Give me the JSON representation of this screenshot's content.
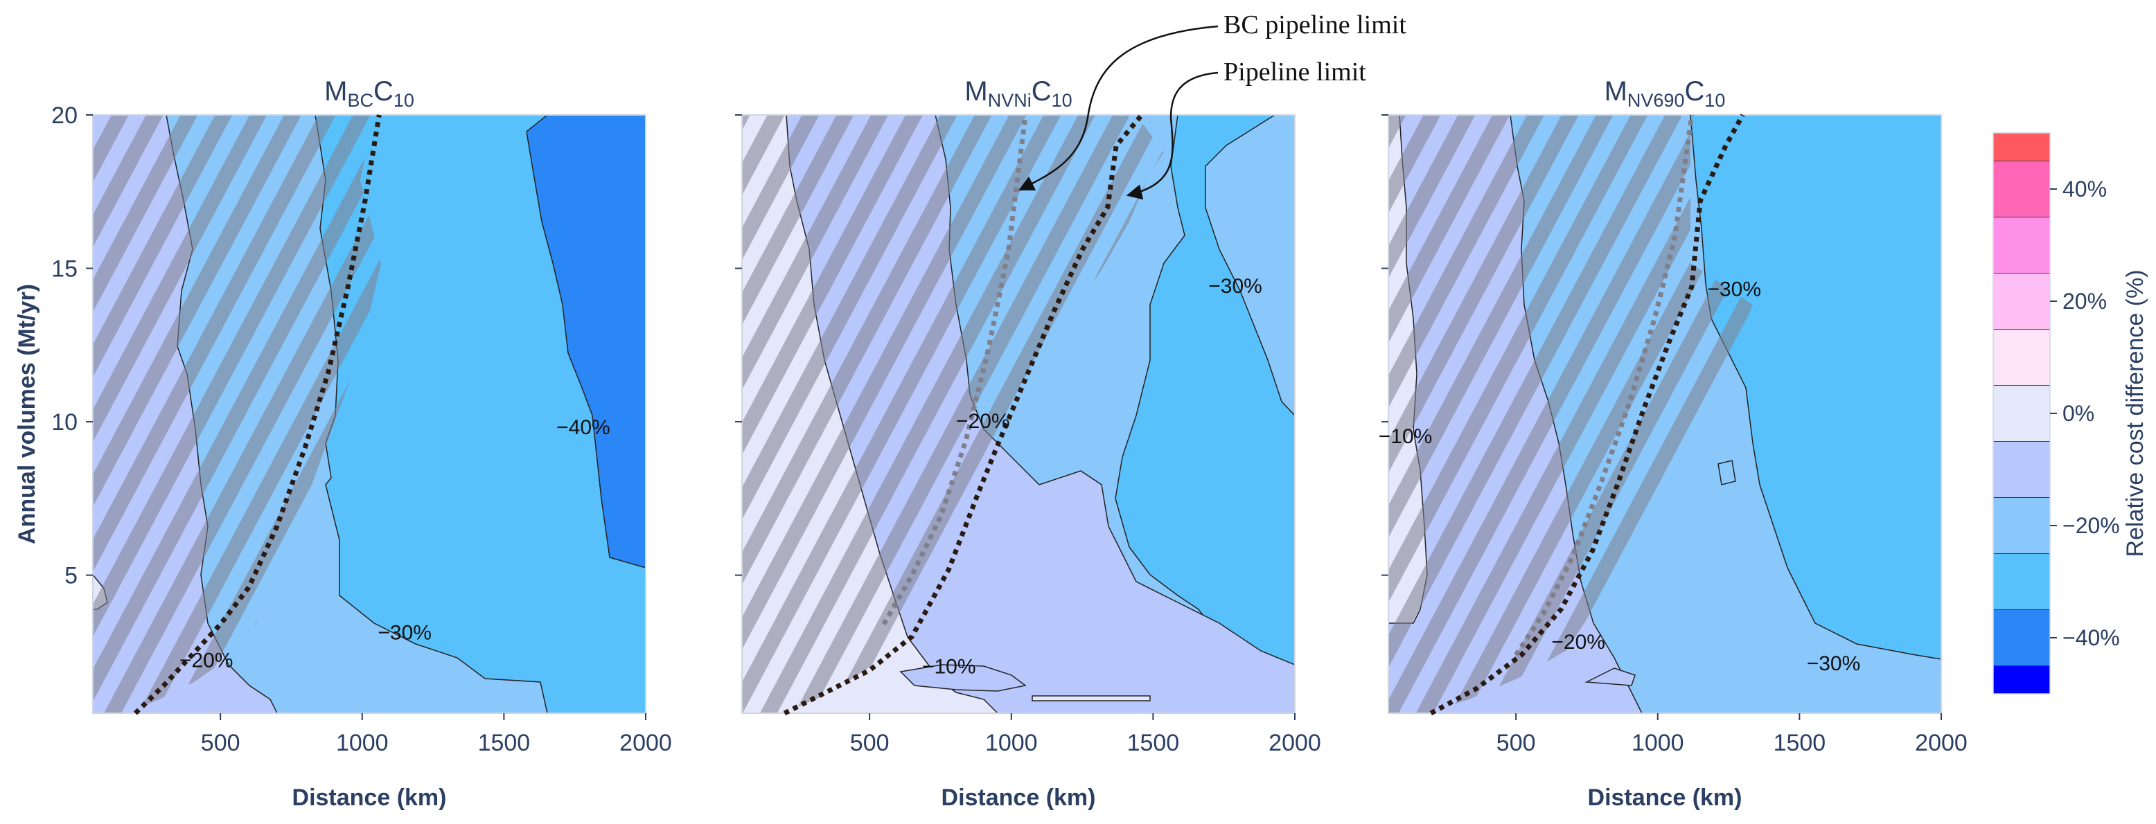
{
  "chart_data": {
    "type": "contour",
    "panels": [
      {
        "title": {
          "base": "M",
          "sub": "BC",
          "tail": "C",
          "sub2": "10"
        },
        "xlim": [
          50,
          2000
        ],
        "ylim": [
          0.5,
          20
        ],
        "xticks": [
          "500",
          "1000",
          "1500",
          "2000"
        ],
        "yticks": [
          "5",
          "10",
          "15",
          "20"
        ],
        "xlabel": "Distance (km)",
        "ylabel": "Annual volumes (Mt/yr)",
        "contour_labels": [
          {
            "text": "−20%",
            "x": 450,
            "y": 2.0
          },
          {
            "text": "−30%",
            "x": 1150,
            "y": 2.9
          },
          {
            "text": "−40%",
            "x": 1780,
            "y": 9.6
          }
        ],
        "pipeline_limit": [
          [
            200,
            0.5
          ],
          [
            300,
            1.4
          ],
          [
            400,
            2.4
          ],
          [
            500,
            3.4
          ],
          [
            600,
            4.6
          ],
          [
            700,
            6.6
          ],
          [
            800,
            9.2
          ],
          [
            880,
            11.6
          ],
          [
            950,
            14.4
          ],
          [
            1010,
            17.2
          ],
          [
            1060,
            20
          ]
        ],
        "bc_pipeline_limit": []
      },
      {
        "title": {
          "base": "M",
          "sub": "NVNi",
          "tail": "C",
          "sub2": "10"
        },
        "xlim": [
          50,
          2000
        ],
        "ylim": [
          0.5,
          20
        ],
        "xticks": [
          "500",
          "1000",
          "1500",
          "2000"
        ],
        "yticks": [],
        "xlabel": "Distance (km)",
        "ylabel": "",
        "contour_labels": [
          {
            "text": "−20%",
            "x": 900,
            "y": 9.8
          },
          {
            "text": "−30%",
            "x": 1790,
            "y": 14.2
          },
          {
            "text": "−10%",
            "x": 780,
            "y": 1.8
          }
        ],
        "pipeline_limit": [
          [
            200,
            0.5
          ],
          [
            350,
            1.2
          ],
          [
            500,
            1.9
          ],
          [
            650,
            3.0
          ],
          [
            780,
            5.2
          ],
          [
            880,
            7.6
          ],
          [
            950,
            9.2
          ],
          [
            1050,
            11.4
          ],
          [
            1150,
            13.6
          ],
          [
            1250,
            15.6
          ],
          [
            1340,
            17.0
          ],
          [
            1370,
            19.0
          ],
          [
            1460,
            20
          ]
        ],
        "bc_pipeline_limit": [
          [
            550,
            3.4
          ],
          [
            650,
            5.0
          ],
          [
            750,
            6.9
          ],
          [
            840,
            9.4
          ],
          [
            920,
            12.4
          ],
          [
            990,
            15.6
          ],
          [
            1050,
            20
          ]
        ]
      },
      {
        "title": {
          "base": "M",
          "sub": "NV690",
          "tail": "C",
          "sub2": "10"
        },
        "xlim": [
          50,
          2000
        ],
        "ylim": [
          0.5,
          20
        ],
        "xticks": [
          "500",
          "1000",
          "1500",
          "2000"
        ],
        "yticks": [],
        "xlabel": "Distance (km)",
        "ylabel": "",
        "contour_labels": [
          {
            "text": "−10%",
            "x": 110,
            "y": 9.3
          },
          {
            "text": "−20%",
            "x": 720,
            "y": 2.6
          },
          {
            "text": "−30%",
            "x": 1270,
            "y": 14.1
          },
          {
            "text": "−30%",
            "x": 1620,
            "y": 1.9
          }
        ],
        "pipeline_limit": [
          [
            200,
            0.5
          ],
          [
            360,
            1.3
          ],
          [
            520,
            2.4
          ],
          [
            660,
            3.9
          ],
          [
            770,
            5.8
          ],
          [
            860,
            8.0
          ],
          [
            950,
            10.4
          ],
          [
            1040,
            12.6
          ],
          [
            1120,
            14.4
          ],
          [
            1150,
            17.2
          ],
          [
            1240,
            19.0
          ],
          [
            1300,
            20
          ]
        ],
        "bc_pipeline_limit": [
          [
            500,
            2.4
          ],
          [
            600,
            3.8
          ],
          [
            700,
            5.6
          ],
          [
            800,
            8.0
          ],
          [
            900,
            10.6
          ],
          [
            990,
            13.4
          ],
          [
            1060,
            16.0
          ],
          [
            1120,
            20
          ]
        ]
      }
    ],
    "annotations": [
      "BC pipeline limit",
      "Pipeline limit"
    ],
    "colorbar": {
      "label": "Relative cost difference (%)",
      "ticks": [
        "40%",
        "20%",
        "0%",
        "−20%",
        "−40%"
      ],
      "levels": [
        -50,
        -45,
        -35,
        -25,
        -15,
        -5,
        5,
        15,
        25,
        35,
        45,
        50
      ],
      "colors": [
        "#0000ff",
        "#2b87f5",
        "#58c0fb",
        "#8ac8fb",
        "#b8c8fc",
        "#e5e7fa",
        "#fee4f9",
        "#ffbff5",
        "#ff90e7",
        "#ff66b6",
        "#ff5960"
      ]
    },
    "colors": {
      "band_0": "#e5e7fa",
      "band_minus10": "#b8c8fc",
      "band_minus20": "#8ac8fb",
      "band_minus30": "#58c0fb",
      "band_minus40": "#2b87f5",
      "hatch": "#7f7f8e",
      "pipeline_line": "#2a1a12",
      "bc_line": "#7f7f8c",
      "text": "#2b3f63"
    }
  }
}
